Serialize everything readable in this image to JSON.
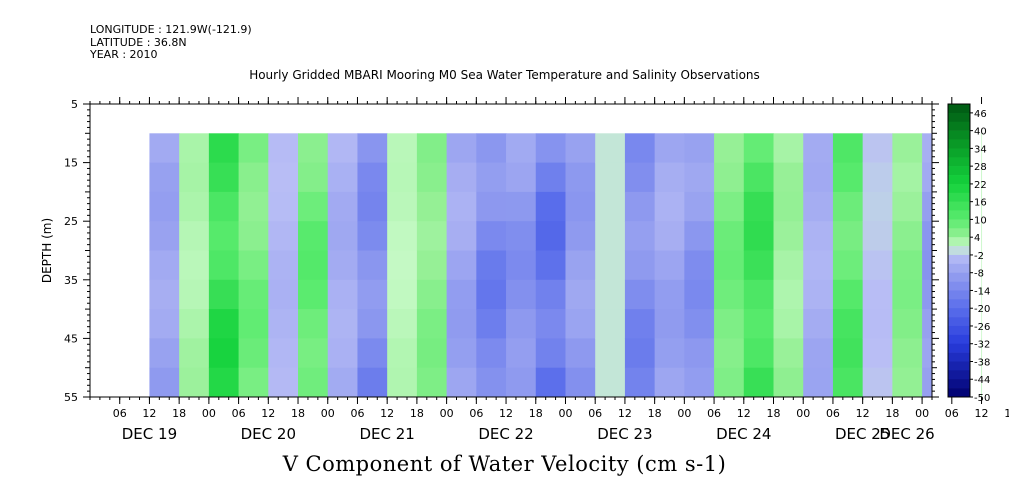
{
  "header": {
    "longitude": "LONGITUDE : 121.9W(-121.9)",
    "latitude": "LATITUDE : 36.8N",
    "year": "YEAR : 2010",
    "title": "Hourly Gridded MBARI Mooring M0 Sea Water Temperature and Salinity Observations"
  },
  "chart_data": {
    "type": "heatmap",
    "title": "Hourly Gridded MBARI Mooring M0 Sea Water Temperature and Salinity Observations",
    "xlabel": "",
    "ylabel": "DEPTH (m)",
    "subtitle": "V Component of Water Velocity (cm s-1)",
    "y_ticks": [
      5,
      15,
      25,
      35,
      45,
      55
    ],
    "ylim": [
      55,
      5
    ],
    "data_depth_range": [
      10,
      55
    ],
    "x_hour_ticks": [
      "06",
      "12",
      "18",
      "00",
      "06",
      "12",
      "18",
      "00",
      "06",
      "12",
      "18",
      "00",
      "06",
      "12",
      "18",
      "00",
      "06",
      "12",
      "18",
      "00",
      "06",
      "12",
      "18",
      "00",
      "06",
      "12",
      "18",
      "00",
      "06",
      "12",
      "18",
      "00"
    ],
    "x_day_labels": [
      "DEC 19",
      "DEC 20",
      "DEC 21",
      "DEC 22",
      "DEC 23",
      "DEC 24",
      "DEC 25",
      "DEC 26"
    ],
    "data_start_hour": 12,
    "colorbar_levels": [
      48,
      46,
      43,
      40,
      37,
      34,
      31,
      28,
      25,
      22,
      19,
      16,
      13,
      10,
      7,
      4,
      1,
      -2,
      -5,
      -8,
      -11,
      -14,
      -17,
      -20,
      -23,
      -26,
      -29,
      -32,
      -35,
      -38,
      -41,
      -44,
      -47,
      -50
    ],
    "colorbar_labels": [
      "46",
      "40",
      "34",
      "28",
      "22",
      "16",
      "10",
      "4",
      "-2",
      "-8",
      "-14",
      "-20",
      "-26",
      "-32",
      "-38",
      "-44",
      "-50"
    ],
    "column_profile": [
      {
        "hour": 12,
        "v": -8
      },
      {
        "hour": 18,
        "v": 3
      },
      {
        "hour": 24,
        "v": 18
      },
      {
        "hour": 30,
        "v": 8
      },
      {
        "hour": 36,
        "v": -4
      },
      {
        "hour": 42,
        "v": 10
      },
      {
        "hour": 48,
        "v": -6
      },
      {
        "hour": 54,
        "v": -14
      },
      {
        "hour": 60,
        "v": 2
      },
      {
        "hour": 66,
        "v": 6
      },
      {
        "hour": 72,
        "v": -8
      },
      {
        "hour": 78,
        "v": -16
      },
      {
        "hour": 84,
        "v": -12
      },
      {
        "hour": 90,
        "v": -20
      },
      {
        "hour": 96,
        "v": -10
      },
      {
        "hour": 102,
        "v": 0
      },
      {
        "hour": 108,
        "v": -14
      },
      {
        "hour": 114,
        "v": -8
      },
      {
        "hour": 120,
        "v": -12
      },
      {
        "hour": 126,
        "v": 8
      },
      {
        "hour": 132,
        "v": 16
      },
      {
        "hour": 138,
        "v": 4
      },
      {
        "hour": 144,
        "v": -6
      },
      {
        "hour": 150,
        "v": 12
      },
      {
        "hour": 156,
        "v": -2
      },
      {
        "hour": 162,
        "v": 6
      },
      {
        "hour": 168,
        "v": -10
      },
      {
        "hour": 174,
        "v": 14
      },
      {
        "hour": 180,
        "v": 4
      },
      {
        "hour": 186,
        "v": -8
      },
      {
        "hour": 192,
        "v": 8
      },
      {
        "hour": 198,
        "v": -6
      },
      {
        "hour": 204,
        "v": 2
      },
      {
        "hour": 210,
        "v": 16
      },
      {
        "hour": 216,
        "v": 0
      },
      {
        "hour": 222,
        "v": 12
      },
      {
        "hour": 228,
        "v": -4
      },
      {
        "hour": 234,
        "v": -2
      },
      {
        "hour": 240,
        "v": 14
      },
      {
        "hour": 246,
        "v": 18
      }
    ],
    "grid": false,
    "legend": "colorbar-right"
  },
  "colors": {
    "axis": "#000000",
    "background": "#ffffff"
  }
}
